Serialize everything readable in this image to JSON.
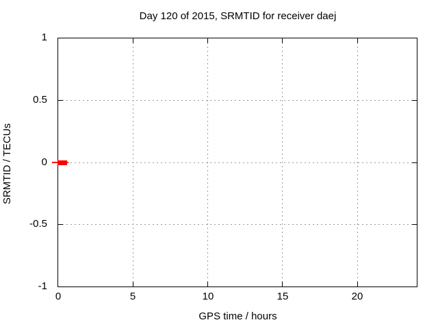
{
  "chart_data": {
    "type": "line",
    "title": "Day 120 of 2015, SRMTID for receiver daej",
    "xlabel": "GPS time / hours",
    "ylabel": "SRMTID / TECUs",
    "xlim": [
      0,
      24
    ],
    "ylim": [
      -1,
      1
    ],
    "xticks": [
      0,
      5,
      10,
      15,
      20
    ],
    "yticks": [
      1,
      0.5,
      0,
      -0.5,
      -1
    ],
    "xtick_labels": [
      "0",
      "5",
      "10",
      "15",
      "20"
    ],
    "ytick_labels": [
      "1",
      "0.5",
      "0",
      "-0.5",
      "-1"
    ],
    "grid": "dotted gray at every axis tick",
    "legend_position": "none",
    "colors": {
      "series": "#ff0000",
      "grid": "#999999",
      "axis": "#000000",
      "text": "#000000",
      "background": "#ffffff"
    },
    "series": [
      {
        "name": "SRMTID",
        "color": "#ff0000",
        "style": "thick horizontal segment with thin line extension at y=0",
        "x": [
          0,
          0.7
        ],
        "y": [
          0,
          0
        ],
        "thin_line_x": [
          -0.4,
          0.75
        ]
      }
    ]
  }
}
